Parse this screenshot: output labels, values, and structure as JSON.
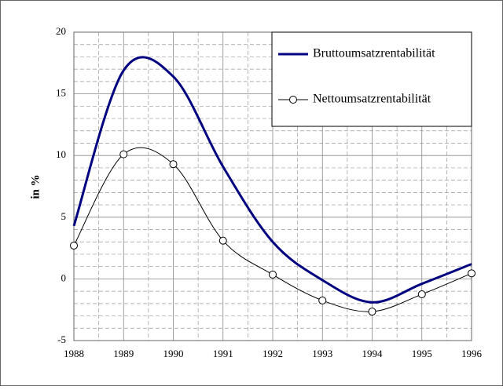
{
  "chart_data": {
    "type": "line",
    "y_label": "in %",
    "categories": [
      "1988",
      "1989",
      "1990",
      "1991",
      "1992",
      "1993",
      "1994",
      "1995",
      "1996"
    ],
    "series": [
      {
        "name": "Bruttoumsatzrentabilität",
        "color": "#000080",
        "values": [
          4.3,
          16.9,
          16.4,
          9.1,
          3.0,
          -0.1,
          -1.9,
          -0.4,
          1.2
        ]
      },
      {
        "name": "Nettoumsatzrentabilität",
        "color": "#000000",
        "values": [
          2.7,
          10.1,
          9.3,
          3.1,
          0.35,
          -1.75,
          -2.65,
          -1.25,
          0.45
        ]
      }
    ],
    "ylim": [
      -5,
      20
    ],
    "yticks": [
      -5,
      0,
      5,
      10,
      15,
      20
    ],
    "grid": true,
    "legend": "top-right"
  }
}
